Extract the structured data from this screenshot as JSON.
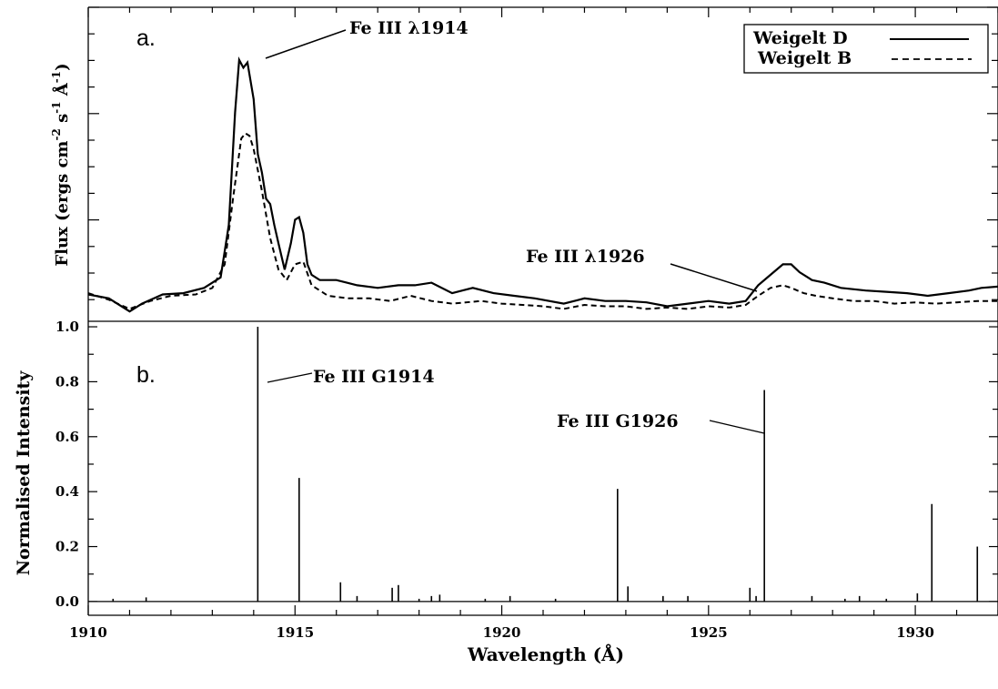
{
  "chart_data": [
    {
      "panel": "a.",
      "type": "line",
      "ylabel_main": "Flux (ergs cm",
      "ylabel_sup1": "-2",
      "ylabel_mid1": " s",
      "ylabel_sup2": "-1",
      "ylabel_mid2": " Å",
      "ylabel_sup3": "-1",
      "ylabel_end": ")",
      "xlim": [
        1910,
        1932
      ],
      "legend_position": "top-right",
      "series": [
        {
          "name": "Weigelt D",
          "style": "solid",
          "x": [
            1910.0,
            1910.5,
            1911.0,
            1911.3,
            1911.8,
            1912.3,
            1912.8,
            1913.2,
            1913.4,
            1913.55,
            1913.65,
            1913.75,
            1913.85,
            1914.0,
            1914.1,
            1914.2,
            1914.3,
            1914.4,
            1914.5,
            1914.6,
            1914.75,
            1914.9,
            1915.0,
            1915.1,
            1915.2,
            1915.3,
            1915.4,
            1915.6,
            1916.0,
            1916.5,
            1917.0,
            1917.5,
            1917.9,
            1918.3,
            1918.8,
            1919.3,
            1919.8,
            1920.3,
            1920.8,
            1921.5,
            1922.0,
            1922.5,
            1923.0,
            1923.5,
            1924.0,
            1924.5,
            1925.0,
            1925.5,
            1925.9,
            1926.2,
            1926.5,
            1926.8,
            1927.0,
            1927.2,
            1927.5,
            1927.8,
            1928.2,
            1928.8,
            1929.3,
            1929.8,
            1930.3,
            1930.8,
            1931.3,
            1931.6,
            1932.0
          ],
          "y": [
            0.085,
            0.07,
            0.02,
            0.05,
            0.085,
            0.09,
            0.11,
            0.15,
            0.35,
            0.78,
            0.98,
            0.95,
            0.97,
            0.83,
            0.62,
            0.55,
            0.45,
            0.43,
            0.35,
            0.28,
            0.18,
            0.28,
            0.37,
            0.38,
            0.32,
            0.2,
            0.16,
            0.14,
            0.14,
            0.12,
            0.11,
            0.12,
            0.12,
            0.13,
            0.09,
            0.11,
            0.09,
            0.08,
            0.07,
            0.05,
            0.07,
            0.06,
            0.06,
            0.055,
            0.04,
            0.05,
            0.06,
            0.05,
            0.06,
            0.12,
            0.16,
            0.2,
            0.2,
            0.17,
            0.14,
            0.13,
            0.11,
            0.1,
            0.095,
            0.09,
            0.08,
            0.09,
            0.1,
            0.11,
            0.115
          ]
        },
        {
          "name": "Weigelt B",
          "style": "dashed",
          "x": [
            1910.0,
            1910.5,
            1911.0,
            1911.5,
            1912.0,
            1912.6,
            1913.0,
            1913.3,
            1913.5,
            1913.7,
            1913.8,
            1913.9,
            1914.0,
            1914.2,
            1914.4,
            1914.6,
            1914.8,
            1915.0,
            1915.2,
            1915.4,
            1915.8,
            1916.3,
            1916.8,
            1917.3,
            1917.8,
            1918.3,
            1918.8,
            1919.5,
            1920.0,
            1920.5,
            1921.0,
            1921.5,
            1922.0,
            1922.5,
            1923.0,
            1923.5,
            1924.0,
            1924.5,
            1925.0,
            1925.5,
            1925.9,
            1926.2,
            1926.5,
            1926.8,
            1927.0,
            1927.3,
            1927.6,
            1928.0,
            1928.5,
            1929.0,
            1929.5,
            1930.0,
            1930.5,
            1931.0,
            1931.5,
            1932.0
          ],
          "y": [
            0.09,
            0.065,
            0.03,
            0.06,
            0.08,
            0.085,
            0.11,
            0.2,
            0.45,
            0.68,
            0.7,
            0.69,
            0.64,
            0.48,
            0.3,
            0.18,
            0.14,
            0.2,
            0.21,
            0.12,
            0.08,
            0.07,
            0.07,
            0.06,
            0.08,
            0.06,
            0.05,
            0.06,
            0.05,
            0.045,
            0.04,
            0.03,
            0.045,
            0.04,
            0.04,
            0.03,
            0.035,
            0.03,
            0.04,
            0.035,
            0.045,
            0.08,
            0.11,
            0.12,
            0.11,
            0.09,
            0.08,
            0.07,
            0.06,
            0.06,
            0.05,
            0.055,
            0.05,
            0.055,
            0.06,
            0.06
          ]
        }
      ],
      "annotations": [
        {
          "prefix": "Fe III ",
          "lambda": "λ",
          "number": "1914"
        },
        {
          "prefix": "Fe III ",
          "lambda": "λ",
          "number": "1926"
        }
      ]
    },
    {
      "panel": "b.",
      "type": "line",
      "ylabel": "Normalised Intensity",
      "xlabel": "Wavelength (Å)",
      "xlim": [
        1910,
        1932
      ],
      "ylim": [
        -0.05,
        1.02
      ],
      "xticks": [
        1910,
        1915,
        1920,
        1925,
        1930
      ],
      "yticks": [
        "0.0",
        "0.2",
        "0.4",
        "0.6",
        "0.8",
        "1.0"
      ],
      "lines": {
        "x": [
          1910.6,
          1911.4,
          1914.1,
          1915.1,
          1916.1,
          1916.5,
          1917.35,
          1917.5,
          1918.0,
          1918.3,
          1918.5,
          1919.6,
          1920.2,
          1921.3,
          1922.8,
          1923.05,
          1923.9,
          1924.5,
          1926.0,
          1926.15,
          1926.35,
          1927.5,
          1928.3,
          1928.65,
          1929.3,
          1930.05,
          1930.4,
          1931.5
        ],
        "y": [
          0.01,
          0.015,
          1.0,
          0.45,
          0.07,
          0.02,
          0.05,
          0.06,
          0.01,
          0.02,
          0.025,
          0.01,
          0.02,
          0.01,
          0.41,
          0.055,
          0.02,
          0.02,
          0.05,
          0.02,
          0.77,
          0.02,
          0.01,
          0.02,
          0.01,
          0.03,
          0.355,
          0.2
        ]
      },
      "annotations": [
        {
          "prefix": "Fe III  ",
          "glyph": "G",
          "number": "1914"
        },
        {
          "prefix": "Fe III  ",
          "glyph": "G",
          "number": "1926"
        }
      ]
    }
  ]
}
